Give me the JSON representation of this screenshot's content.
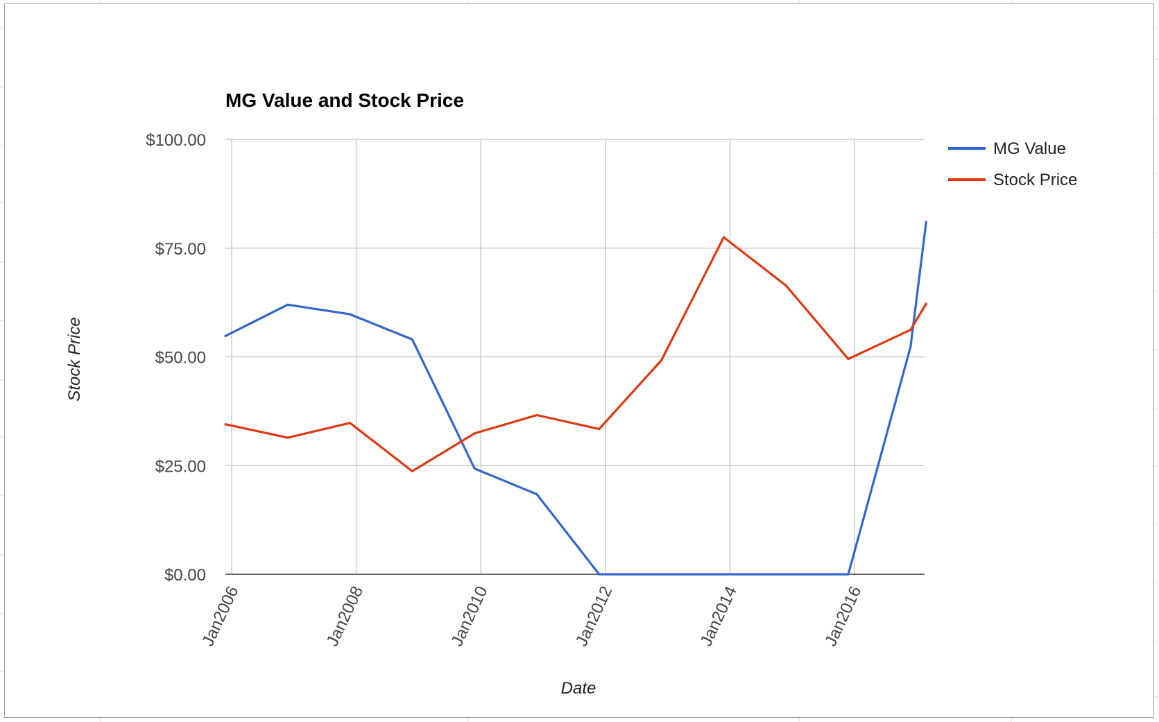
{
  "chart_data": {
    "type": "line",
    "title": "MG Value and Stock Price",
    "xlabel": "Date",
    "ylabel": "Stock Price",
    "x": [
      "Jan2006",
      "Jan2007",
      "Jan2008",
      "Jan2009",
      "Jan2010",
      "Jan2011",
      "Jan2012",
      "Jan2013",
      "Jan2014",
      "Jan2015",
      "Jan2016",
      "Jan2017",
      "Apr2017"
    ],
    "x_ticks": [
      "Jan2006",
      "Jan2008",
      "Jan2010",
      "Jan2012",
      "Jan2014",
      "Jan2016"
    ],
    "ylim": [
      0,
      100
    ],
    "y_ticks": [
      "$0.00",
      "$25.00",
      "$50.00",
      "$75.00",
      "$100.00"
    ],
    "grid": true,
    "legend_position": "right",
    "series": [
      {
        "name": "MG Value",
        "color": "#3366cc",
        "values": [
          54.8,
          62.0,
          59.8,
          54.0,
          24.3,
          18.4,
          0,
          0,
          0,
          0,
          0,
          52.3,
          81.0
        ]
      },
      {
        "name": "Stock Price",
        "color": "#dc3912",
        "values": [
          34.5,
          31.4,
          34.8,
          23.7,
          32.4,
          36.6,
          33.4,
          49.2,
          77.5,
          66.4,
          49.5,
          56.2,
          62.2
        ]
      }
    ]
  }
}
